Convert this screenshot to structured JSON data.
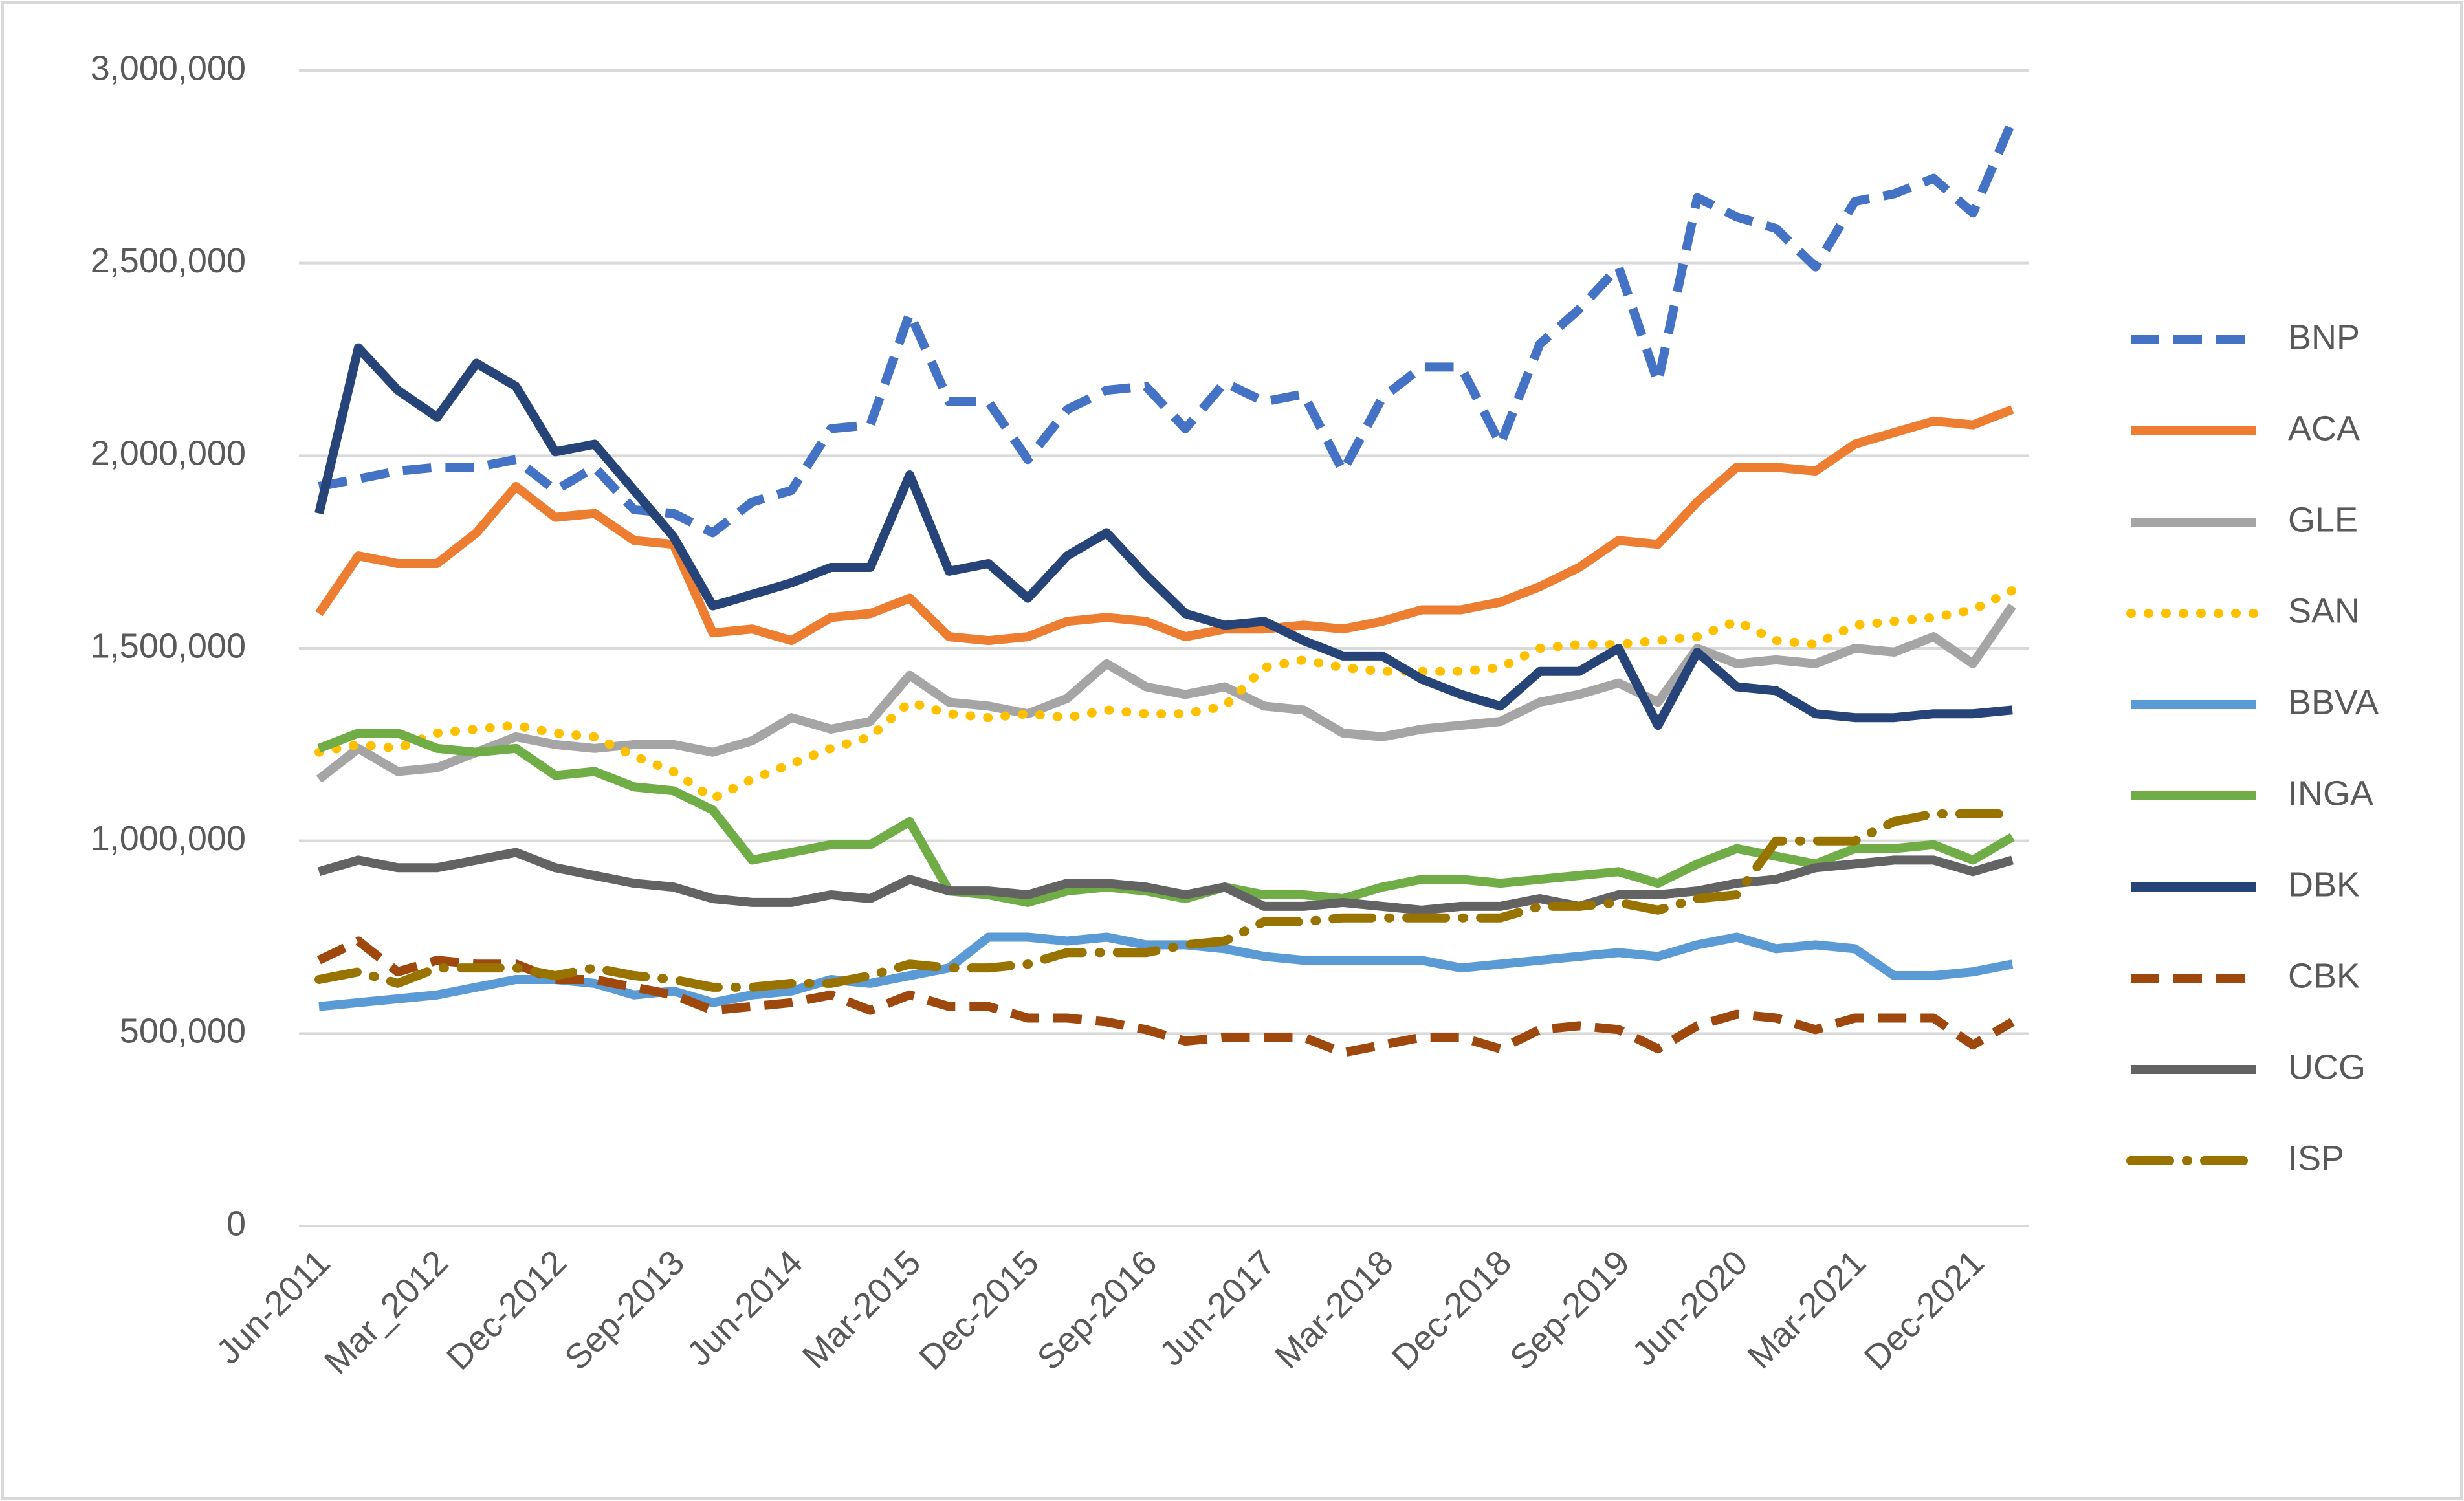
{
  "chart_data": {
    "type": "line",
    "categories": [
      "Jun-2011",
      null,
      null,
      "Mar_2012",
      null,
      null,
      "Dec-2012",
      null,
      null,
      "Sep-2013",
      null,
      null,
      "Jun-2014",
      null,
      null,
      "Mar-2015",
      null,
      null,
      "Dec-2015",
      null,
      null,
      "Sep-2016",
      null,
      null,
      "Jun-2017",
      null,
      null,
      "Mar-2018",
      null,
      null,
      "Dec-2018",
      null,
      null,
      "Sep-2019",
      null,
      null,
      "Jun-2020",
      null,
      null,
      "Mar-2021",
      null,
      null,
      "Dec-2021",
      null
    ],
    "ylim": [
      0,
      3000000
    ],
    "yticks": [
      0,
      {
        "value": 500000,
        "label": "500,000"
      },
      {
        "value": 1000000,
        "label": "1,000,000"
      },
      {
        "value": 1500000,
        "label": "1,500,000"
      },
      {
        "value": 2000000,
        "label": "2,000,000"
      },
      {
        "value": 2500000,
        "label": "2,500,000"
      },
      {
        "value": 3000000,
        "label": "3,000,000"
      }
    ],
    "grid": true,
    "legend": "right",
    "series": [
      {
        "name": "BNP",
        "color": "#4472C4",
        "style": "dashed",
        "values": [
          1920000,
          1940000,
          1960000,
          1970000,
          1970000,
          1990000,
          1910000,
          1970000,
          1860000,
          1850000,
          1800000,
          1880000,
          1910000,
          2070000,
          2080000,
          2370000,
          2140000,
          2140000,
          1990000,
          2120000,
          2170000,
          2180000,
          2070000,
          2190000,
          2140000,
          2160000,
          1960000,
          2150000,
          2230000,
          2230000,
          2030000,
          2290000,
          2380000,
          2490000,
          2190000,
          2670000,
          2620000,
          2590000,
          2490000,
          2660000,
          2680000,
          2720000,
          2630000,
          2870000
        ]
      },
      {
        "name": "ACA",
        "color": "#ED7D31",
        "style": "solid",
        "values": [
          1590000,
          1740000,
          1720000,
          1720000,
          1800000,
          1920000,
          1840000,
          1850000,
          1780000,
          1770000,
          1540000,
          1550000,
          1520000,
          1580000,
          1590000,
          1630000,
          1530000,
          1520000,
          1530000,
          1570000,
          1580000,
          1570000,
          1530000,
          1550000,
          1550000,
          1560000,
          1550000,
          1570000,
          1600000,
          1600000,
          1620000,
          1660000,
          1710000,
          1780000,
          1770000,
          1880000,
          1970000,
          1970000,
          1960000,
          2030000,
          2060000,
          2090000,
          2080000,
          2120000
        ]
      },
      {
        "name": "GLE",
        "color": "#A5A5A5",
        "style": "solid",
        "values": [
          1160000,
          1240000,
          1180000,
          1190000,
          1230000,
          1270000,
          1250000,
          1240000,
          1250000,
          1250000,
          1230000,
          1260000,
          1320000,
          1290000,
          1310000,
          1430000,
          1360000,
          1350000,
          1330000,
          1370000,
          1460000,
          1400000,
          1380000,
          1400000,
          1350000,
          1340000,
          1280000,
          1270000,
          1290000,
          1300000,
          1310000,
          1360000,
          1380000,
          1410000,
          1360000,
          1500000,
          1460000,
          1470000,
          1460000,
          1500000,
          1490000,
          1530000,
          1460000,
          1610000
        ]
      },
      {
        "name": "SAN",
        "color": "#FFC000",
        "style": "dotted",
        "values": [
          1230000,
          1250000,
          1240000,
          1280000,
          1290000,
          1300000,
          1280000,
          1270000,
          1220000,
          1180000,
          1110000,
          1160000,
          1200000,
          1240000,
          1270000,
          1360000,
          1330000,
          1320000,
          1330000,
          1320000,
          1340000,
          1330000,
          1330000,
          1350000,
          1450000,
          1470000,
          1450000,
          1440000,
          1440000,
          1440000,
          1450000,
          1500000,
          1510000,
          1510000,
          1520000,
          1530000,
          1570000,
          1520000,
          1510000,
          1560000,
          1570000,
          1580000,
          1600000,
          1650000
        ]
      },
      {
        "name": "BBVA",
        "color": "#5B9BD5",
        "style": "solid",
        "values": [
          570000,
          580000,
          590000,
          600000,
          620000,
          640000,
          640000,
          630000,
          600000,
          610000,
          580000,
          600000,
          610000,
          640000,
          630000,
          650000,
          670000,
          750000,
          750000,
          740000,
          750000,
          730000,
          730000,
          720000,
          700000,
          690000,
          690000,
          690000,
          690000,
          670000,
          680000,
          690000,
          700000,
          710000,
          700000,
          730000,
          750000,
          720000,
          730000,
          720000,
          650000,
          650000,
          660000,
          680000
        ]
      },
      {
        "name": "INGA",
        "color": "#70AD47",
        "style": "solid",
        "values": [
          1240000,
          1280000,
          1280000,
          1240000,
          1230000,
          1240000,
          1170000,
          1180000,
          1140000,
          1130000,
          1080000,
          950000,
          970000,
          990000,
          990000,
          1050000,
          870000,
          860000,
          840000,
          870000,
          880000,
          870000,
          850000,
          880000,
          860000,
          860000,
          850000,
          880000,
          900000,
          900000,
          890000,
          900000,
          910000,
          920000,
          890000,
          940000,
          980000,
          960000,
          940000,
          980000,
          980000,
          990000,
          950000,
          1010000
        ]
      },
      {
        "name": "DBK",
        "color": "#264478",
        "style": "solid",
        "values": [
          1850000,
          2280000,
          2170000,
          2100000,
          2240000,
          2180000,
          2010000,
          2030000,
          1910000,
          1790000,
          1610000,
          1640000,
          1670000,
          1710000,
          1710000,
          1950000,
          1700000,
          1720000,
          1630000,
          1740000,
          1800000,
          1690000,
          1590000,
          1560000,
          1570000,
          1520000,
          1480000,
          1480000,
          1420000,
          1380000,
          1350000,
          1440000,
          1440000,
          1500000,
          1300000,
          1490000,
          1400000,
          1390000,
          1330000,
          1320000,
          1320000,
          1330000,
          1330000,
          1340000
        ]
      },
      {
        "name": "CBK",
        "color": "#9E480E",
        "style": "dashed",
        "values": [
          690000,
          740000,
          660000,
          690000,
          680000,
          680000,
          640000,
          640000,
          620000,
          600000,
          560000,
          570000,
          580000,
          600000,
          560000,
          600000,
          570000,
          570000,
          540000,
          540000,
          530000,
          510000,
          480000,
          490000,
          490000,
          490000,
          450000,
          470000,
          490000,
          490000,
          460000,
          510000,
          520000,
          510000,
          460000,
          520000,
          550000,
          540000,
          510000,
          540000,
          540000,
          540000,
          470000,
          530000
        ]
      },
      {
        "name": "UCG",
        "color": "#636363",
        "style": "solid",
        "values": [
          920000,
          950000,
          930000,
          930000,
          950000,
          970000,
          930000,
          910000,
          890000,
          880000,
          850000,
          840000,
          840000,
          860000,
          850000,
          900000,
          870000,
          870000,
          860000,
          890000,
          890000,
          880000,
          860000,
          880000,
          830000,
          830000,
          840000,
          830000,
          820000,
          830000,
          830000,
          850000,
          830000,
          860000,
          860000,
          870000,
          890000,
          900000,
          930000,
          940000,
          950000,
          950000,
          920000,
          950000
        ]
      },
      {
        "name": "ISP",
        "color": "#997300",
        "style": "dash-dot",
        "values": [
          640000,
          660000,
          630000,
          670000,
          670000,
          670000,
          650000,
          670000,
          650000,
          640000,
          620000,
          620000,
          630000,
          630000,
          650000,
          680000,
          670000,
          670000,
          680000,
          710000,
          710000,
          710000,
          730000,
          740000,
          790000,
          790000,
          800000,
          800000,
          800000,
          800000,
          800000,
          830000,
          830000,
          840000,
          820000,
          850000,
          860000,
          1000000,
          1000000,
          1000000,
          1050000,
          1070000,
          1070000,
          1070000
        ]
      }
    ]
  }
}
